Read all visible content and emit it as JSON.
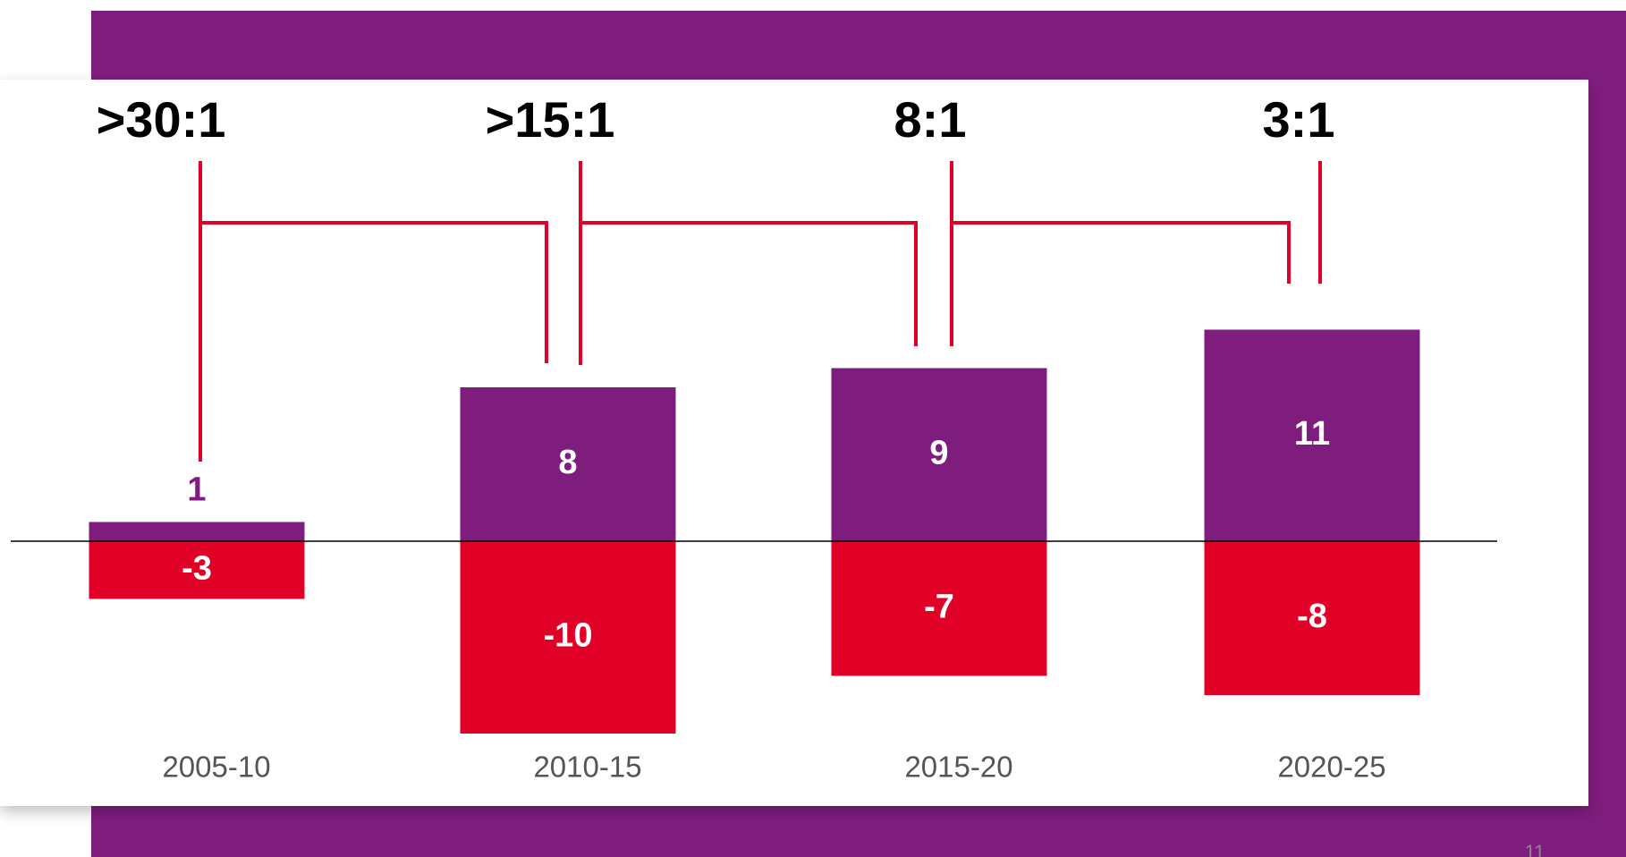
{
  "chart_data": {
    "type": "bar",
    "categories": [
      "2005-10",
      "2010-15",
      "2015-20",
      "2020-25"
    ],
    "series": [
      {
        "color": "#7f1d7e",
        "values": [
          1,
          8,
          9,
          11
        ]
      },
      {
        "color": "#e10026",
        "values": [
          -3,
          -10,
          -7,
          -8
        ]
      }
    ],
    "annotations": [
      ">30:1",
      ">15:1",
      "8:1",
      "3:1"
    ],
    "page_number": "11"
  }
}
